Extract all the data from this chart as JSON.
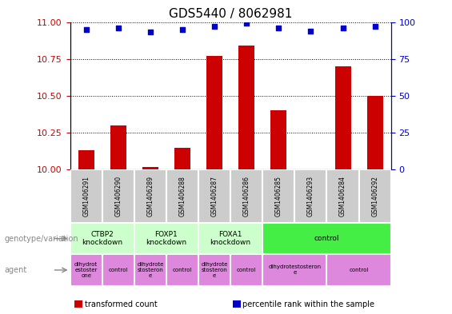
{
  "title": "GDS5440 / 8062981",
  "samples": [
    "GSM1406291",
    "GSM1406290",
    "GSM1406289",
    "GSM1406288",
    "GSM1406287",
    "GSM1406286",
    "GSM1406285",
    "GSM1406293",
    "GSM1406284",
    "GSM1406292"
  ],
  "transformed_counts": [
    10.13,
    10.3,
    10.02,
    10.15,
    10.77,
    10.84,
    10.4,
    10.0,
    10.7,
    10.5
  ],
  "percentile_ranks": [
    95,
    96,
    93,
    95,
    97,
    99,
    96,
    94,
    96,
    97
  ],
  "ylim": [
    10.0,
    11.0
  ],
  "yticks_left": [
    10.0,
    10.25,
    10.5,
    10.75,
    11.0
  ],
  "yticks_right": [
    0,
    25,
    50,
    75,
    100
  ],
  "bar_color": "#cc0000",
  "dot_color": "#0000cc",
  "bg_color": "#ffffff",
  "sample_box_color": "#cccccc",
  "genotype_groups": [
    {
      "label": "CTBP2\nknockdown",
      "start": 0,
      "end": 2,
      "color": "#ccffcc"
    },
    {
      "label": "FOXP1\nknockdown",
      "start": 2,
      "end": 4,
      "color": "#ccffcc"
    },
    {
      "label": "FOXA1\nknockdown",
      "start": 4,
      "end": 6,
      "color": "#ccffcc"
    },
    {
      "label": "control",
      "start": 6,
      "end": 10,
      "color": "#44ee44"
    }
  ],
  "agent_groups": [
    {
      "label": "dihydrot\nestoster\none",
      "start": 0,
      "end": 1,
      "color": "#dd88dd"
    },
    {
      "label": "control",
      "start": 1,
      "end": 2,
      "color": "#dd88dd"
    },
    {
      "label": "dihydrote\nstosteron\ne",
      "start": 2,
      "end": 3,
      "color": "#dd88dd"
    },
    {
      "label": "control",
      "start": 3,
      "end": 4,
      "color": "#dd88dd"
    },
    {
      "label": "dihydrote\nstosteron\ne",
      "start": 4,
      "end": 5,
      "color": "#dd88dd"
    },
    {
      "label": "control",
      "start": 5,
      "end": 6,
      "color": "#dd88dd"
    },
    {
      "label": "dihydrotestosteron\ne",
      "start": 6,
      "end": 8,
      "color": "#dd88dd"
    },
    {
      "label": "control",
      "start": 8,
      "end": 10,
      "color": "#dd88dd"
    }
  ],
  "left_label": "genotype/variation",
  "agent_label": "agent",
  "title_fontsize": 11,
  "axis_label_color_left": "#cc0000",
  "axis_label_color_right": "#0000cc"
}
